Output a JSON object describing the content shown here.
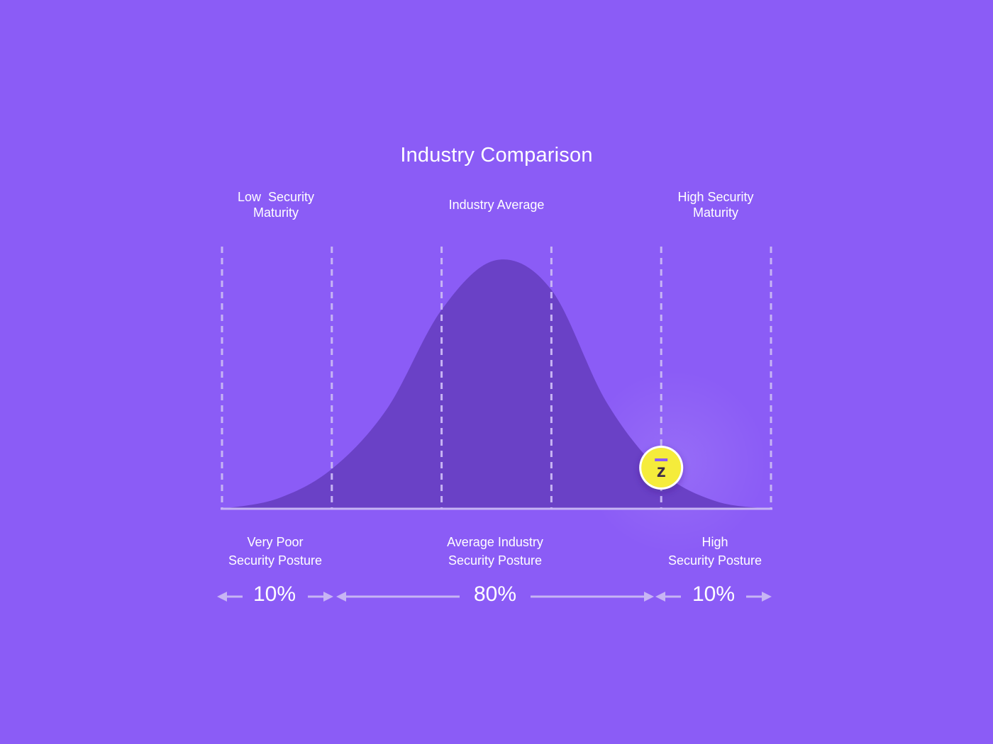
{
  "title": "Industry Comparison",
  "colors": {
    "background": "#8b5cf6",
    "curve": "#6a41c6",
    "dashes": "#c7b4f4",
    "baseline": "#c7b4f4",
    "arrows": "#c7b4f4",
    "marker_fill": "#f5ec3a",
    "marker_ring": "#ffffff",
    "marker_glyph": "#3a2a4a"
  },
  "top_labels": {
    "low": [
      "Low  Security",
      "Maturity"
    ],
    "average": [
      "Industry Average"
    ],
    "high": [
      "High Security",
      "Maturity"
    ]
  },
  "bottom_labels": {
    "very_poor": [
      "Very Poor",
      "Security Posture"
    ],
    "average": [
      "Average Industry",
      "Security Posture"
    ],
    "high": [
      "High",
      "Security Posture"
    ]
  },
  "percentages": {
    "left": "10%",
    "middle": "80%",
    "right": "10%"
  },
  "marker": {
    "icon": "zeguro-logo-icon",
    "glyph": "z"
  },
  "chart_data": {
    "type": "area",
    "title": "Industry Comparison",
    "xlabel": "",
    "ylabel": "",
    "grid": true,
    "xlim": [
      -2.5,
      2.5
    ],
    "ylim": [
      0,
      1
    ],
    "dividers": [
      -2.5,
      -1.5,
      -0.5,
      0.5,
      1.5,
      2.5
    ],
    "segments": [
      {
        "label": "Very Poor Security Posture",
        "range": [
          -2.5,
          -1.5
        ],
        "percent": "10%"
      },
      {
        "label": "Average Industry Security Posture",
        "range": [
          -1.5,
          1.5
        ],
        "percent": "80%"
      },
      {
        "label": "High Security Posture",
        "range": [
          1.5,
          2.5
        ],
        "percent": "10%"
      }
    ],
    "series": [
      {
        "values": [
          {
            "x": -2.5,
            "y": 0.0
          },
          {
            "x": -2.0,
            "y": 0.04
          },
          {
            "x": -1.5,
            "y": 0.16
          },
          {
            "x": -1.0,
            "y": 0.4
          },
          {
            "x": -0.5,
            "y": 0.8
          },
          {
            "x": 0.0,
            "y": 1.0
          },
          {
            "x": 0.5,
            "y": 0.88
          },
          {
            "x": 1.0,
            "y": 0.43
          },
          {
            "x": 1.5,
            "y": 0.15
          },
          {
            "x": 2.0,
            "y": 0.03
          },
          {
            "x": 2.5,
            "y": 0.0
          }
        ]
      }
    ],
    "marker_point": {
      "x": 1.5,
      "y": 0.16
    }
  }
}
